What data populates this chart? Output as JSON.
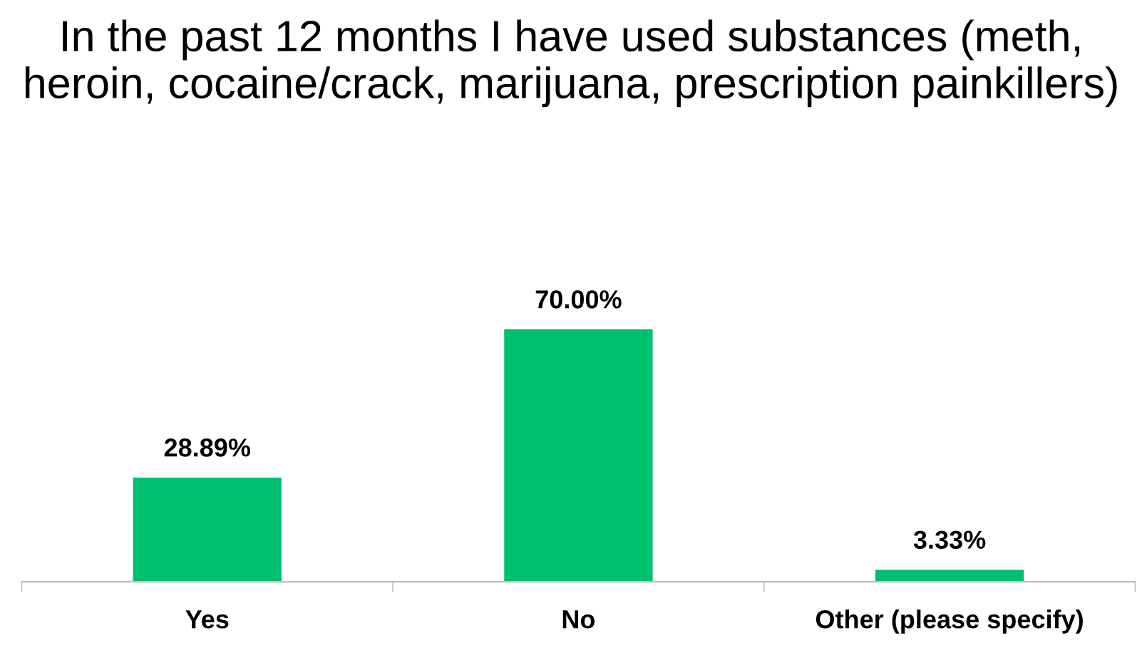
{
  "chart_data": {
    "type": "bar",
    "title": "In the past 12 months I have used substances (meth, heroin, cocaine/crack, marijuana, prescription painkillers)",
    "categories": [
      "Yes",
      "No",
      "Other (please specify)"
    ],
    "values": [
      28.89,
      70.0,
      3.33
    ],
    "value_labels": [
      "28.89%",
      "70.00%",
      "3.33%"
    ],
    "color": "#00bf6f",
    "grid": false,
    "legend": false
  }
}
